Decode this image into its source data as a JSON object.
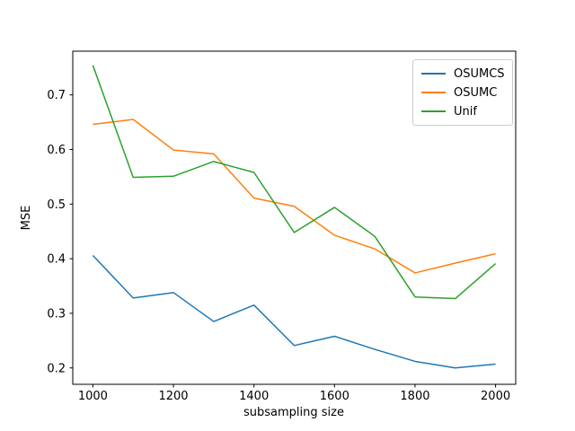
{
  "figure": {
    "background": "#ffffff",
    "axes_edge_color": "#000000",
    "tick_color": "#000000",
    "label_color": "#000000",
    "legend_border_color": "#cccccc"
  },
  "chart_data": {
    "type": "line",
    "title": "",
    "xlabel": "subsampling size",
    "ylabel": "MSE",
    "x": [
      1000,
      1100,
      1200,
      1300,
      1400,
      1500,
      1600,
      1700,
      1800,
      1900,
      2000
    ],
    "series": [
      {
        "name": "OSUMCS",
        "color": "#1f77b4",
        "values": [
          0.406,
          0.328,
          0.338,
          0.285,
          0.315,
          0.241,
          0.258,
          0.234,
          0.212,
          0.2,
          0.207
        ]
      },
      {
        "name": "OSUMC",
        "color": "#ff7f0e",
        "values": [
          0.646,
          0.655,
          0.599,
          0.592,
          0.511,
          0.496,
          0.443,
          0.418,
          0.374,
          0.392,
          0.409
        ]
      },
      {
        "name": "Unif",
        "color": "#2ca02c",
        "values": [
          0.754,
          0.549,
          0.551,
          0.578,
          0.558,
          0.448,
          0.494,
          0.441,
          0.33,
          0.327,
          0.391
        ]
      }
    ],
    "xticks": [
      1000,
      1200,
      1400,
      1600,
      1800,
      2000
    ],
    "yticks": [
      0.2,
      0.3,
      0.4,
      0.5,
      0.6,
      0.7
    ],
    "xlim": [
      950,
      2050
    ],
    "ylim": [
      0.17,
      0.78
    ],
    "grid": false,
    "legend_position": "upper right",
    "line_width": 1.5
  }
}
